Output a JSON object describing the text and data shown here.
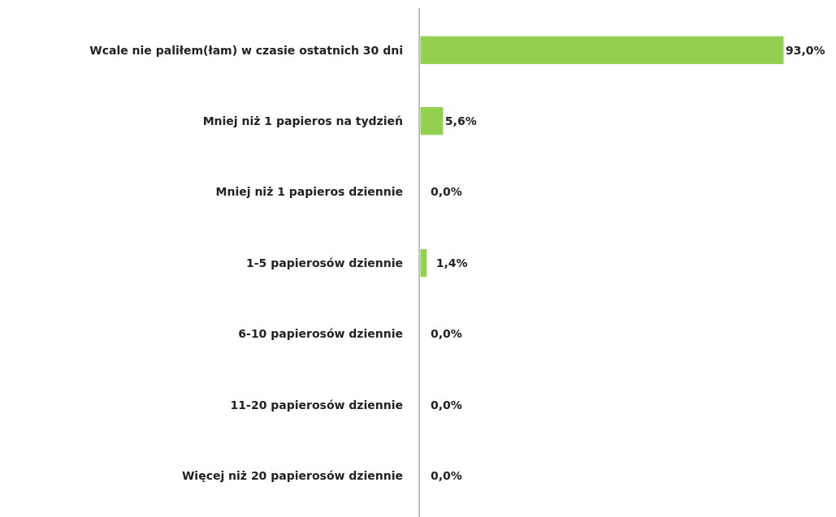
{
  "chart_data": {
    "type": "bar",
    "orientation": "horizontal",
    "categories": [
      "Wcale nie paliłem(łam) w czasie ostatnich 30 dni",
      "Mniej niż 1 papieros na tydzień",
      "Mniej niż 1 papieros dziennie",
      "1-5 papierosów dziennie",
      "6-10 papierosów dziennie",
      "11-20 papierosów dziennie",
      "Więcej niż 20 papierosów dziennie"
    ],
    "values": [
      93.0,
      5.6,
      0.0,
      1.4,
      0.0,
      0.0,
      0.0
    ],
    "value_labels": [
      "93,0%",
      "5,6%",
      "0,0%",
      "1,4%",
      "0,0%",
      "0,0%",
      "0,0%"
    ],
    "color": "#92d050"
  }
}
